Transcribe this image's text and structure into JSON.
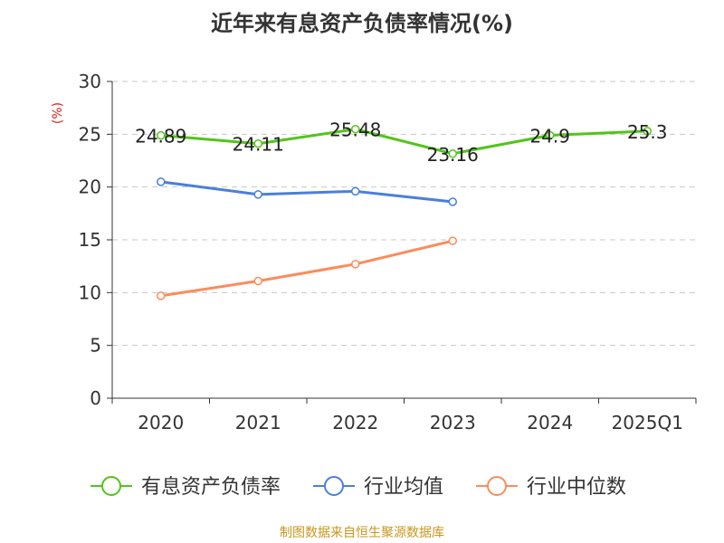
{
  "chart_data": {
    "type": "line",
    "title": "近年来有息资产负债率情况(%)",
    "ylabel": "(%)",
    "xlabel": "",
    "categories": [
      "2020",
      "2021",
      "2022",
      "2023",
      "2024",
      "2025Q1"
    ],
    "ylim": [
      0,
      30
    ],
    "yticks": [
      0,
      5,
      10,
      15,
      20,
      25,
      30
    ],
    "grid": true,
    "legend_position": "bottom",
    "series": [
      {
        "name": "有息资产负债率",
        "color": "#52c41a",
        "values": [
          24.89,
          24.11,
          25.48,
          23.16,
          24.9,
          25.3
        ],
        "labels": [
          "24.89",
          "24.11",
          "25.48",
          "23.16",
          "24.9",
          "25.3"
        ]
      },
      {
        "name": "行业均值",
        "color": "#4a7fdc",
        "values": [
          20.5,
          19.3,
          19.6,
          18.6,
          null,
          null
        ]
      },
      {
        "name": "行业中位数",
        "color": "#fb8c5a",
        "values": [
          9.7,
          11.1,
          12.7,
          14.9,
          null,
          null
        ]
      }
    ]
  },
  "source": "制图数据来自恒生聚源数据库"
}
